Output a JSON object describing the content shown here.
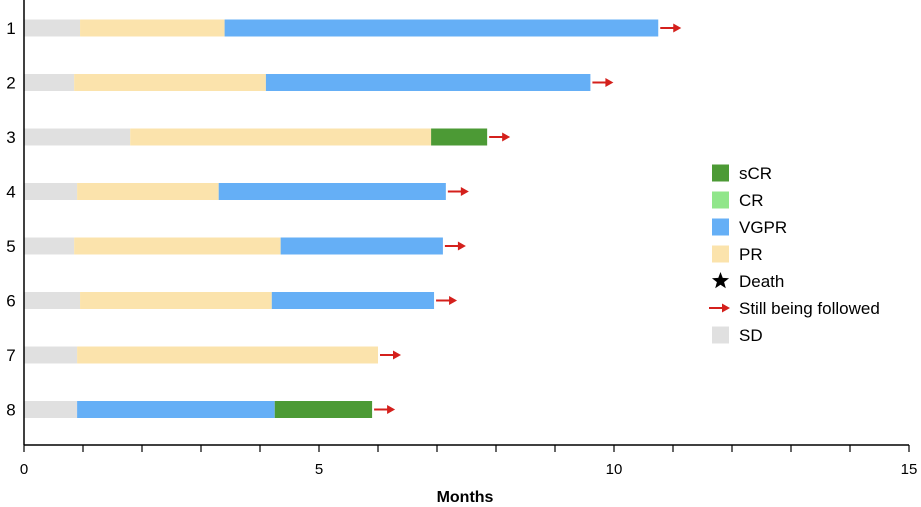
{
  "chart_data": {
    "type": "bar",
    "orientation": "horizontal-stacked",
    "xlabel": "Months",
    "xlim": [
      0,
      15
    ],
    "xticks": [
      "0",
      "5",
      "10",
      "15"
    ],
    "grid": false,
    "legend_position": "right",
    "categories": [
      "1",
      "2",
      "3",
      "4",
      "5",
      "6",
      "7",
      "8"
    ],
    "rows": [
      {
        "label": "1",
        "segments": [
          {
            "status": "SD",
            "start": 0,
            "end": 0.95
          },
          {
            "status": "PR",
            "start": 0.95,
            "end": 3.4
          },
          {
            "status": "VGPR",
            "start": 3.4,
            "end": 10.75
          }
        ],
        "still_followed": true
      },
      {
        "label": "2",
        "segments": [
          {
            "status": "SD",
            "start": 0,
            "end": 0.85
          },
          {
            "status": "PR",
            "start": 0.85,
            "end": 4.1
          },
          {
            "status": "VGPR",
            "start": 4.1,
            "end": 9.6
          }
        ],
        "still_followed": true
      },
      {
        "label": "3",
        "segments": [
          {
            "status": "SD",
            "start": 0,
            "end": 1.8
          },
          {
            "status": "PR",
            "start": 1.8,
            "end": 6.9
          },
          {
            "status": "sCR",
            "start": 6.9,
            "end": 7.85
          }
        ],
        "still_followed": true
      },
      {
        "label": "4",
        "segments": [
          {
            "status": "SD",
            "start": 0,
            "end": 0.9
          },
          {
            "status": "PR",
            "start": 0.9,
            "end": 3.3
          },
          {
            "status": "VGPR",
            "start": 3.3,
            "end": 7.15
          }
        ],
        "still_followed": true
      },
      {
        "label": "5",
        "segments": [
          {
            "status": "SD",
            "start": 0,
            "end": 0.85
          },
          {
            "status": "PR",
            "start": 0.85,
            "end": 4.35
          },
          {
            "status": "VGPR",
            "start": 4.35,
            "end": 7.1
          }
        ],
        "still_followed": true
      },
      {
        "label": "6",
        "segments": [
          {
            "status": "SD",
            "start": 0,
            "end": 0.95
          },
          {
            "status": "PR",
            "start": 0.95,
            "end": 4.2
          },
          {
            "status": "VGPR",
            "start": 4.2,
            "end": 6.95
          }
        ],
        "still_followed": true
      },
      {
        "label": "7",
        "segments": [
          {
            "status": "SD",
            "start": 0,
            "end": 0.9
          },
          {
            "status": "PR",
            "start": 0.9,
            "end": 6.0
          }
        ],
        "still_followed": true
      },
      {
        "label": "8",
        "segments": [
          {
            "status": "SD",
            "start": 0,
            "end": 0.9
          },
          {
            "status": "VGPR",
            "start": 0.9,
            "end": 4.25
          },
          {
            "status": "sCR",
            "start": 4.25,
            "end": 5.9
          }
        ],
        "still_followed": true
      }
    ],
    "legend": [
      {
        "label": "sCR",
        "symbol": "box",
        "color": "#4c9a35"
      },
      {
        "label": "CR",
        "symbol": "box",
        "color": "#90e68a"
      },
      {
        "label": "VGPR",
        "symbol": "box",
        "color": "#65aff6"
      },
      {
        "label": "PR",
        "symbol": "box",
        "color": "#fbe3ac"
      },
      {
        "label": "Death",
        "symbol": "star",
        "color": "#000000"
      },
      {
        "label": "Still being followed",
        "symbol": "arrow",
        "color": "#d4201c"
      },
      {
        "label": "SD",
        "symbol": "box",
        "color": "#e0e0e0"
      }
    ],
    "colors": {
      "sCR": "#4c9a35",
      "CR": "#90e68a",
      "VGPR": "#65aff6",
      "PR": "#fbe3ac",
      "SD": "#e0e0e0",
      "arrow": "#d4201c"
    }
  }
}
